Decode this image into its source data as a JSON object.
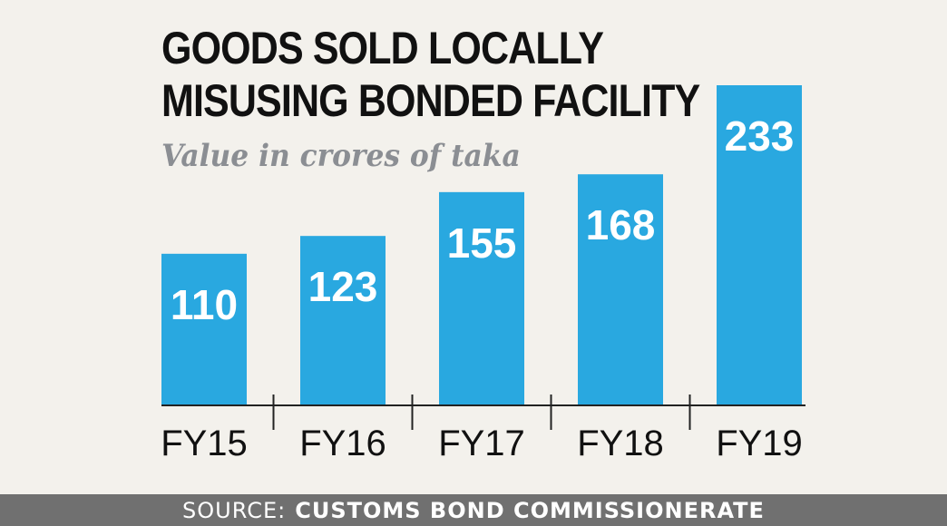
{
  "chart_data": {
    "type": "bar",
    "title": "GOODS SOLD LOCALLY MISUSING BONDED FACILITY",
    "subtitle": "Value in crores of taka",
    "categories": [
      "FY15",
      "FY16",
      "FY17",
      "FY18",
      "FY19"
    ],
    "values": [
      110,
      123,
      155,
      168,
      233
    ],
    "ylim": [
      0,
      233
    ],
    "grid": false,
    "bar_color": "#29a8e0"
  },
  "source": {
    "prefix": "SOURCE:",
    "name": "CUSTOMS BOND COMMISSIONERATE"
  }
}
